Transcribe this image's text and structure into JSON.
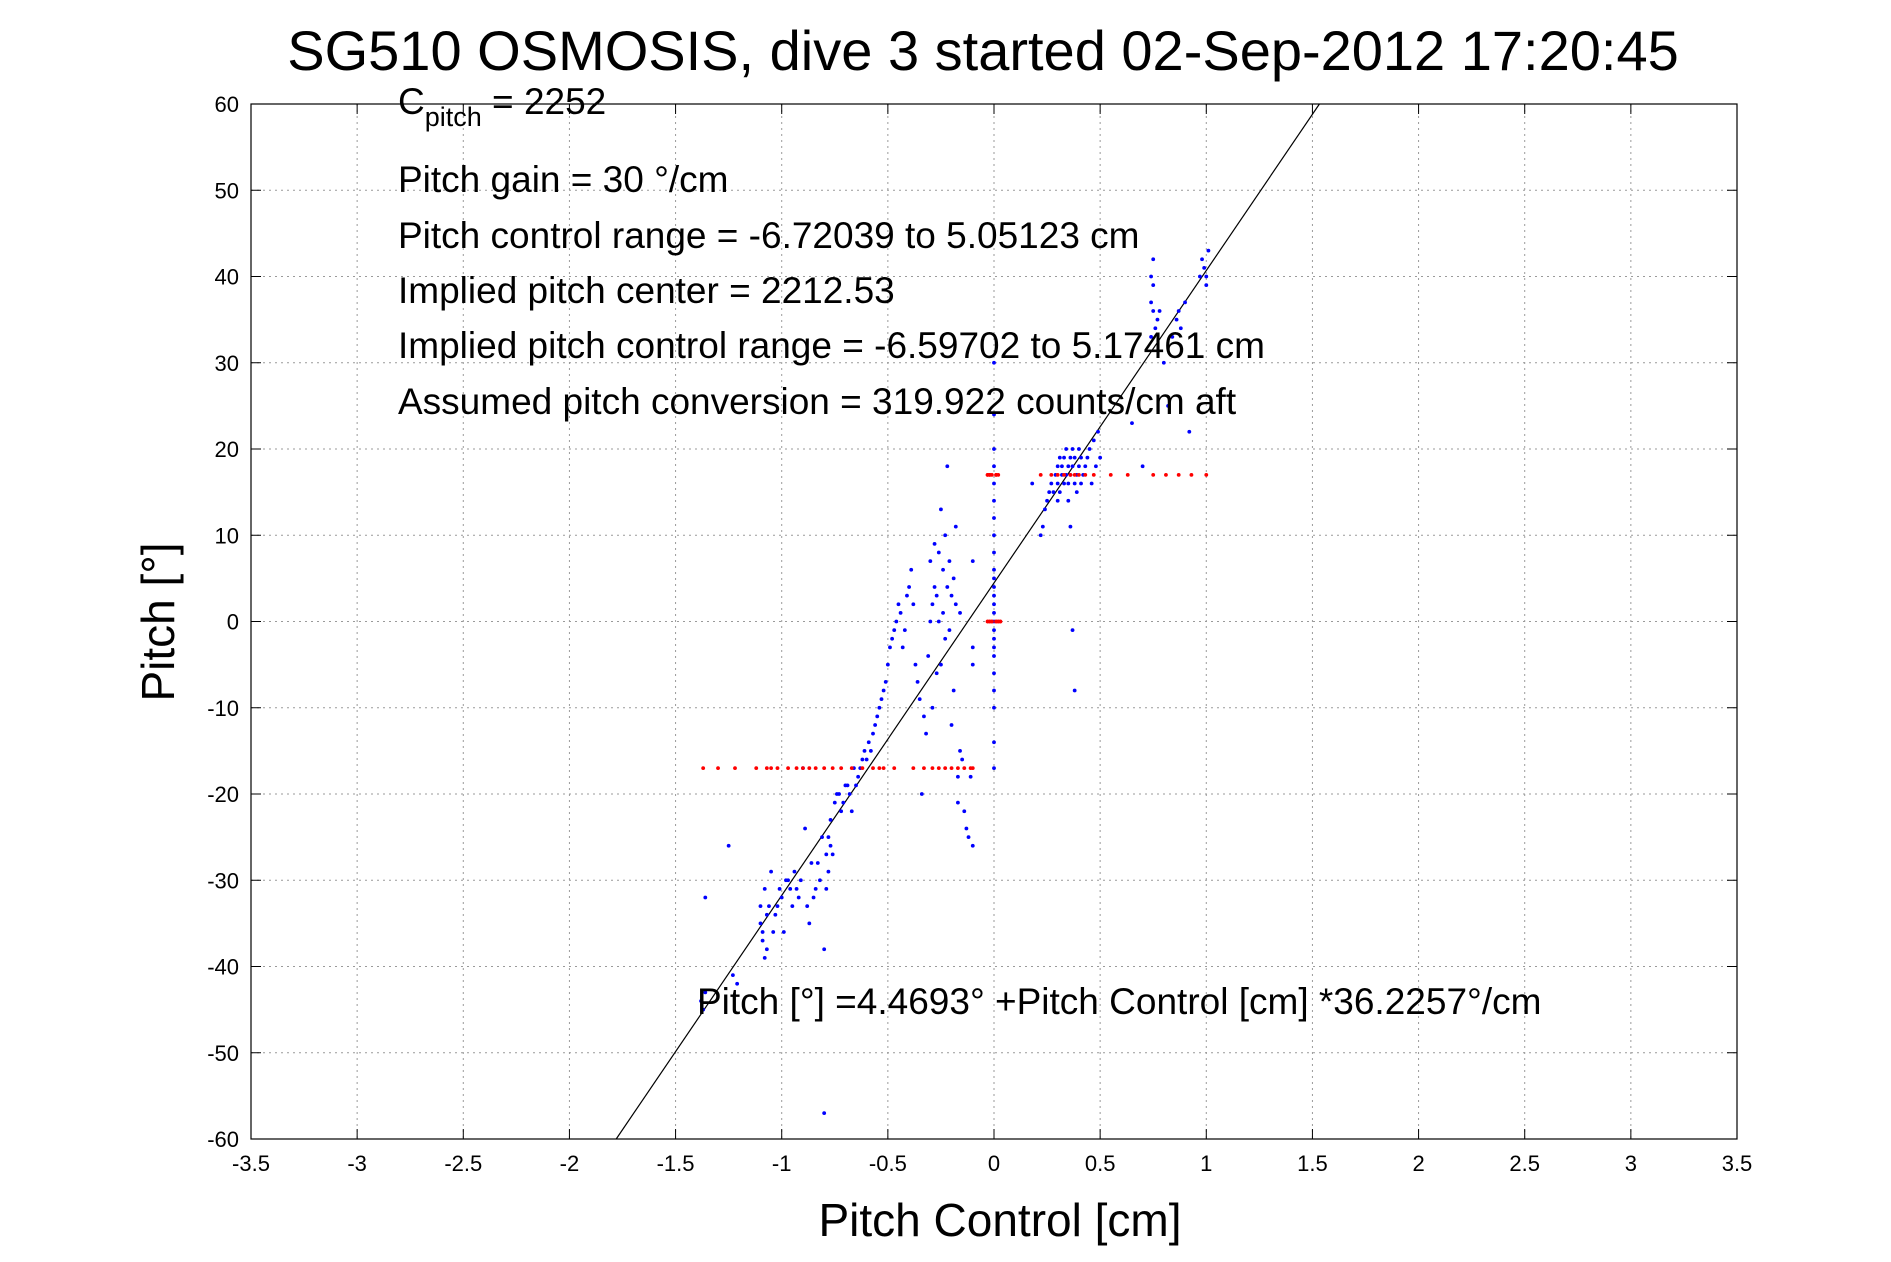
{
  "chart_data": {
    "type": "scatter",
    "title": "SG510 OSMOSIS, dive 3 started 02-Sep-2012 17:20:45",
    "xlabel": "Pitch Control [cm]",
    "ylabel": "Pitch [°]",
    "xlim": [
      -3.5,
      3.5
    ],
    "ylim": [
      -60,
      60
    ],
    "x_ticks": [
      "-3.5",
      "-3",
      "-2.5",
      "-2",
      "-1.5",
      "-1",
      "-0.5",
      "0",
      "0.5",
      "1",
      "1.5",
      "2",
      "2.5",
      "3",
      "3.5"
    ],
    "y_ticks": [
      "60",
      "50",
      "40",
      "30",
      "20",
      "10",
      "0",
      "-10",
      "-20",
      "-30",
      "-40",
      "-50",
      "-60"
    ],
    "grid": true,
    "annotations": {
      "c_pitch_main": "C",
      "c_pitch_sub": "pitch",
      "c_pitch_value": " = 2252",
      "pitch_gain": "Pitch gain = 30 °/cm",
      "pitch_control_range": "Pitch control range = -6.72039 to 5.05123 cm",
      "implied_center": "Implied pitch center = 2212.53",
      "implied_range": "Implied pitch control range = -6.59702 to 5.17461 cm",
      "assumed_conversion": "Assumed pitch conversion = 319.922 counts/cm aft",
      "fit_equation": "Pitch [°] =4.4693° +Pitch Control [cm] *36.2257°/cm"
    },
    "fit_line": {
      "intercept": 4.4693,
      "slope": 36.2257,
      "color": "#000000"
    },
    "series": [
      {
        "color": "#0000ff",
        "x": [
          -1.38,
          -1.37,
          -1.36,
          -1.36,
          -1.25,
          -1.23,
          -1.21,
          -1.1,
          -1.1,
          -1.09,
          -1.09,
          -1.08,
          -1.08,
          -1.07,
          -1.07,
          -1.06,
          -1.05,
          -1.04,
          -1.03,
          -1.02,
          -1.01,
          -1.0,
          -0.99,
          -0.98,
          -0.97,
          -0.96,
          -0.95,
          -0.94,
          -0.93,
          -0.92,
          -0.91,
          -0.9,
          -0.89,
          -0.88,
          -0.87,
          -0.86,
          -0.85,
          -0.84,
          -0.83,
          -0.82,
          -0.81,
          -0.8,
          -0.8,
          -0.79,
          -0.79,
          -0.78,
          -0.78,
          -0.77,
          -0.77,
          -0.76,
          -0.75,
          -0.74,
          -0.73,
          -0.72,
          -0.71,
          -0.7,
          -0.69,
          -0.68,
          -0.67,
          -0.66,
          -0.65,
          -0.64,
          -0.63,
          -0.62,
          -0.61,
          -0.6,
          -0.59,
          -0.58,
          -0.57,
          -0.56,
          -0.55,
          -0.54,
          -0.53,
          -0.52,
          -0.51,
          -0.5,
          -0.49,
          -0.48,
          -0.47,
          -0.46,
          -0.45,
          -0.44,
          -0.43,
          -0.42,
          -0.41,
          -0.4,
          -0.39,
          -0.38,
          -0.37,
          -0.36,
          -0.35,
          -0.34,
          -0.33,
          -0.32,
          -0.31,
          -0.3,
          -0.3,
          -0.29,
          -0.29,
          -0.28,
          -0.28,
          -0.27,
          -0.27,
          -0.26,
          -0.26,
          -0.25,
          -0.25,
          -0.24,
          -0.24,
          -0.23,
          -0.23,
          -0.22,
          -0.22,
          -0.21,
          -0.21,
          -0.2,
          -0.2,
          -0.19,
          -0.19,
          -0.18,
          -0.18,
          -0.17,
          -0.17,
          -0.16,
          -0.16,
          -0.15,
          -0.14,
          -0.13,
          -0.12,
          -0.11,
          -0.1,
          -0.1,
          -0.1,
          -0.1,
          0.0,
          0.0,
          0.0,
          0.0,
          0.0,
          0.0,
          0.0,
          0.0,
          0.0,
          0.0,
          0.0,
          0.0,
          0.0,
          0.0,
          0.0,
          0.0,
          0.0,
          0.0,
          0.0,
          0.0,
          0.0,
          0.0,
          0.0,
          0.0,
          0.0,
          0.18,
          0.22,
          0.23,
          0.24,
          0.25,
          0.26,
          0.27,
          0.28,
          0.29,
          0.3,
          0.3,
          0.3,
          0.31,
          0.31,
          0.32,
          0.32,
          0.33,
          0.33,
          0.34,
          0.34,
          0.35,
          0.35,
          0.35,
          0.36,
          0.36,
          0.37,
          0.37,
          0.38,
          0.38,
          0.39,
          0.39,
          0.4,
          0.4,
          0.41,
          0.41,
          0.42,
          0.43,
          0.44,
          0.45,
          0.46,
          0.47,
          0.48,
          0.49,
          0.5,
          0.36,
          0.37,
          0.38,
          0.65,
          0.7,
          0.74,
          0.74,
          0.74,
          0.75,
          0.75,
          0.75,
          0.76,
          0.77,
          0.78,
          0.8,
          0.82,
          0.84,
          0.86,
          0.87,
          0.88,
          0.9,
          0.92,
          0.97,
          0.98,
          0.99,
          1.0,
          1.0,
          1.01
        ],
        "y": [
          -44,
          -45,
          -32,
          -43,
          -26,
          -41,
          -42,
          -33,
          -35,
          -37,
          -36,
          -39,
          -31,
          -34,
          -38,
          -33,
          -29,
          -36,
          -34,
          -33,
          -31,
          -32,
          -36,
          -30,
          -30,
          -31,
          -33,
          -29,
          -31,
          -32,
          -30,
          -17,
          -24,
          -33,
          -35,
          -28,
          -32,
          -31,
          -28,
          -30,
          -25,
          -57,
          -38,
          -27,
          -31,
          -25,
          -29,
          -23,
          -26,
          -27,
          -21,
          -20,
          -20,
          -22,
          -21,
          -19,
          -19,
          -20,
          -22,
          -17,
          -19,
          -18,
          -17,
          -16,
          -15,
          -16,
          -14,
          -15,
          -13,
          -12,
          -11,
          -10,
          -9,
          -8,
          -7,
          -5,
          -3,
          -2,
          -1,
          0,
          2,
          1,
          -3,
          -1,
          3,
          4,
          6,
          2,
          -5,
          -7,
          -9,
          -20,
          -11,
          -13,
          -4,
          0,
          7,
          2,
          -10,
          4,
          9,
          3,
          -6,
          0,
          8,
          13,
          -5,
          1,
          6,
          -2,
          10,
          4,
          18,
          -1,
          7,
          3,
          -12,
          5,
          -8,
          2,
          11,
          -18,
          -21,
          1,
          -15,
          -16,
          -22,
          -24,
          -25,
          -18,
          7,
          -3,
          -5,
          -26,
          -17,
          -14,
          -10,
          -8,
          -6,
          -4,
          -3,
          -2,
          -1,
          0,
          1,
          2,
          3,
          4,
          5,
          6,
          8,
          10,
          12,
          14,
          16,
          18,
          20,
          24,
          30,
          16,
          10,
          11,
          13,
          14,
          15,
          16,
          15,
          17,
          14,
          18,
          16,
          19,
          15,
          17,
          18,
          16,
          19,
          17,
          20,
          14,
          18,
          16,
          19,
          17,
          20,
          18,
          16,
          19,
          17,
          15,
          18,
          20,
          16,
          19,
          17,
          18,
          19,
          20,
          16,
          21,
          18,
          22,
          19,
          11,
          -1,
          -8,
          23,
          18,
          33,
          37,
          40,
          39,
          42,
          36,
          34,
          35,
          36,
          30,
          25,
          33,
          35,
          36,
          34,
          37,
          22,
          40,
          42,
          41,
          39,
          40,
          43
        ],
        "marker": "dot"
      },
      {
        "color": "#ff0000",
        "x": [
          -1.37,
          -1.3,
          -1.22,
          -1.12,
          -1.07,
          -1.05,
          -1.02,
          -0.97,
          -0.93,
          -0.9,
          -0.87,
          -0.84,
          -0.8,
          -0.76,
          -0.72,
          -0.67,
          -0.62,
          -0.57,
          -0.54,
          -0.52,
          -0.47,
          -0.38,
          -0.33,
          -0.29,
          -0.26,
          -0.23,
          -0.2,
          -0.17,
          -0.14,
          -0.11,
          -0.1,
          -0.03,
          -0.02,
          -0.01,
          0.01,
          0.02,
          0.03,
          -0.03,
          -0.02,
          -0.01,
          0.01,
          0.02,
          0.03,
          -0.03,
          -0.02,
          -0.01,
          0.01,
          0.02,
          -0.03,
          -0.02,
          0.01,
          0.22,
          0.27,
          0.3,
          0.33,
          0.36,
          0.38,
          0.4,
          0.43,
          0.47,
          0.55,
          0.63,
          0.75,
          0.81,
          0.87,
          0.93,
          1.0
        ],
        "y": [
          -17,
          -17,
          -17,
          -17,
          -17,
          -17,
          -17,
          -17,
          -17,
          -17,
          -17,
          -17,
          -17,
          -17,
          -17,
          -17,
          -17,
          -17,
          -17,
          -17,
          -17,
          -17,
          -17,
          -17,
          -17,
          -17,
          -17,
          -17,
          -17,
          -17,
          -17,
          0,
          0,
          0,
          0,
          0,
          0,
          0,
          0,
          0,
          0,
          0,
          0,
          17,
          17,
          17,
          17,
          17,
          17,
          17,
          17,
          17,
          17,
          17,
          17,
          17,
          17,
          17,
          17,
          17,
          17,
          17,
          17,
          17,
          17,
          17,
          17
        ],
        "marker": "dot"
      }
    ]
  }
}
